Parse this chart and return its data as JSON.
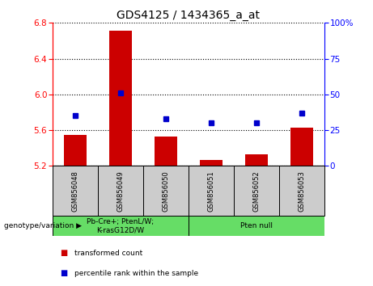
{
  "title": "GDS4125 / 1434365_a_at",
  "samples": [
    "GSM856048",
    "GSM856049",
    "GSM856050",
    "GSM856051",
    "GSM856052",
    "GSM856053"
  ],
  "transformed_count": [
    5.55,
    6.71,
    5.53,
    5.27,
    5.33,
    5.63
  ],
  "percentile_rank": [
    35,
    51,
    33,
    30,
    30,
    37
  ],
  "bar_base": 5.2,
  "ylim_left": [
    5.2,
    6.8
  ],
  "ylim_right": [
    0,
    100
  ],
  "yticks_left": [
    5.2,
    5.6,
    6.0,
    6.4,
    6.8
  ],
  "yticks_right": [
    0,
    25,
    50,
    75,
    100
  ],
  "bar_color": "#CC0000",
  "point_color": "#0000CC",
  "group1_label": "Pb-Cre+; PtenL/W;\nK-rasG12D/W",
  "group2_label": "Pten null",
  "group1_indices": [
    0,
    1,
    2
  ],
  "group2_indices": [
    3,
    4,
    5
  ],
  "group_bg_color": "#66DD66",
  "sample_bg_color": "#CCCCCC",
  "legend_bar_label": "transformed count",
  "legend_point_label": "percentile rank within the sample",
  "genotype_label": "genotype/variation",
  "title_fontsize": 10,
  "tick_fontsize": 7.5,
  "label_fontsize": 7.5
}
